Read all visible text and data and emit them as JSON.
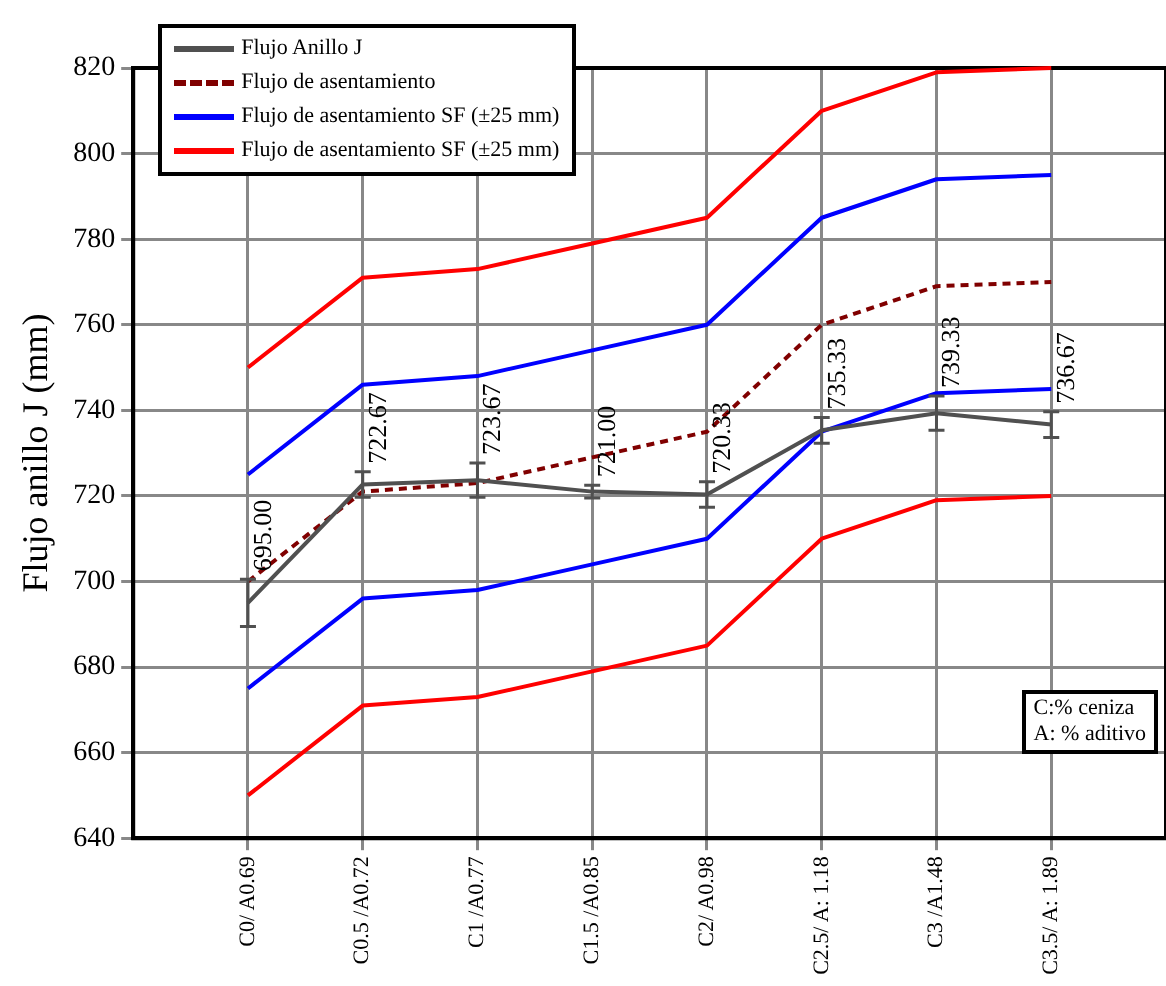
{
  "chart_data": {
    "type": "line",
    "ylabel": "Flujo anillo J (mm)",
    "categories": [
      "C0/ A0.69",
      "C0.5 /A0.72",
      "C1 /A0.77",
      "C1.5 /A0.85",
      "C2/ A0.98",
      "C2.5/ A: 1.18",
      "C3 /A1.48",
      "C3.5/ A: 1.89"
    ],
    "ylim": [
      640,
      820
    ],
    "yticks": [
      640,
      660,
      680,
      700,
      720,
      740,
      760,
      780,
      800,
      820
    ],
    "grid": true,
    "legend": "top left",
    "series": [
      {
        "name": "Flujo Anillo J",
        "color": "#505050",
        "line_style": "solid",
        "values": [
          695.0,
          722.67,
          723.67,
          721.0,
          720.33,
          735.33,
          739.33,
          736.67
        ],
        "errors": [
          5.5,
          3,
          4,
          1.5,
          3,
          3,
          4,
          3
        ],
        "value_labels": [
          "695.00",
          "722.67",
          "723.67",
          "721.00",
          "720.33",
          "735.33",
          "739.33",
          "736.67"
        ]
      },
      {
        "name": "Flujo de asentamiento",
        "color": "#800000",
        "line_style": "dashed",
        "values": [
          700,
          721,
          723,
          729,
          735,
          760,
          769,
          770
        ]
      },
      {
        "name": "Flujo de asentamiento SF (±25 mm)",
        "color": "#0000ff",
        "line_style": "solid",
        "values": [
          725,
          746,
          748,
          754,
          760,
          785,
          794,
          795
        ]
      },
      {
        "name": null,
        "color": "#0000ff",
        "line_style": "solid",
        "values": [
          675,
          696,
          698,
          704,
          710,
          735,
          744,
          745
        ]
      },
      {
        "name": "Flujo de asentamiento SF (±25 mm)",
        "color": "#ff0000",
        "line_style": "solid",
        "values": [
          750,
          771,
          773,
          779,
          785,
          810,
          819,
          820
        ]
      },
      {
        "name": null,
        "color": "#ff0000",
        "line_style": "solid",
        "values": [
          650,
          671,
          673,
          679,
          685,
          710,
          719,
          720
        ]
      }
    ],
    "annotations": [
      "C:% ceniza",
      "A: % aditivo"
    ]
  }
}
